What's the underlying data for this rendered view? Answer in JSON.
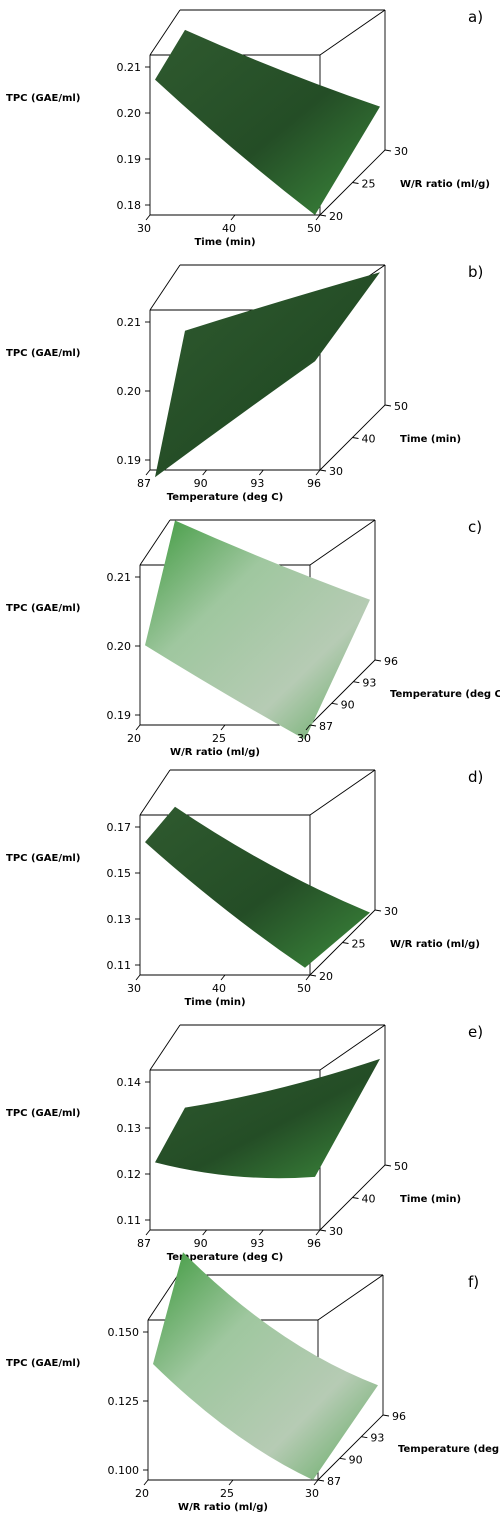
{
  "chart_data": [
    {
      "type": "surface3d",
      "panel": "a)",
      "zlabel": "TPC (GAE/ml)",
      "xlabel": "Time (min)",
      "ylabel": "W/R ratio (ml/g)",
      "x_ticks": [
        "30",
        "40",
        "50"
      ],
      "y_ticks": [
        "20",
        "25",
        "30"
      ],
      "z_ticks": [
        "0.21",
        "0.20",
        "0.19",
        "0.18"
      ],
      "x_range": [
        30,
        50
      ],
      "y_range": [
        20,
        30
      ],
      "z_range": [
        0.18,
        0.21
      ],
      "surface_z": [
        [
          0.208,
          0.194,
          0.18
        ],
        [
          0.209,
          0.197,
          0.185
        ],
        [
          0.209,
          0.2,
          0.19
        ]
      ],
      "shade": "dark"
    },
    {
      "type": "surface3d",
      "panel": "b)",
      "zlabel": "TPC (GAE/ml)",
      "xlabel": "Temperature (deg C)",
      "ylabel": "Time (min)",
      "x_ticks": [
        "87",
        "90",
        "93",
        "96"
      ],
      "y_ticks": [
        "30",
        "40",
        "50"
      ],
      "z_ticks": [
        "0.21",
        "0.20",
        "0.19"
      ],
      "x_range": [
        87,
        96
      ],
      "y_range": [
        30,
        50
      ],
      "z_range": [
        0.19,
        0.21
      ],
      "surface_z": [
        [
          0.189,
          0.198,
          0.205
        ],
        [
          0.196,
          0.202,
          0.207
        ],
        [
          0.203,
          0.207,
          0.209
        ]
      ],
      "shade": "dark"
    },
    {
      "type": "surface3d",
      "panel": "c)",
      "zlabel": "TPC (GAE/ml)",
      "xlabel": "W/R ratio (ml/g)",
      "ylabel": "Temperature (deg C)",
      "x_ticks": [
        "20",
        "25",
        "30"
      ],
      "y_ticks": [
        "87",
        "90",
        "93",
        "96"
      ],
      "z_ticks": [
        "0.21",
        "0.20",
        "0.19"
      ],
      "x_range": [
        20,
        30
      ],
      "y_range": [
        87,
        96
      ],
      "z_range": [
        0.19,
        0.21
      ],
      "surface_z": [
        [
          0.201,
          0.195,
          0.188
        ],
        [
          0.207,
          0.201,
          0.194
        ],
        [
          0.212,
          0.206,
          0.199
        ]
      ],
      "shade": "light"
    },
    {
      "type": "surface3d",
      "panel": "d)",
      "zlabel": "TPC (GAE/ml)",
      "xlabel": "Time (min)",
      "ylabel": "W/R ratio (ml/g)",
      "x_ticks": [
        "30",
        "40",
        "50"
      ],
      "y_ticks": [
        "20",
        "25",
        "30"
      ],
      "z_ticks": [
        "0.17",
        "0.15",
        "0.13",
        "0.11"
      ],
      "x_range": [
        30,
        50
      ],
      "y_range": [
        20,
        30
      ],
      "z_range": [
        0.11,
        0.17
      ],
      "surface_z": [
        [
          0.165,
          0.138,
          0.113
        ],
        [
          0.163,
          0.136,
          0.112
        ],
        [
          0.161,
          0.134,
          0.111
        ]
      ],
      "shade": "dark"
    },
    {
      "type": "surface3d",
      "panel": "e)",
      "zlabel": "TPC (GAE/ml)",
      "xlabel": "Temperature (deg C)",
      "ylabel": "Time (min)",
      "x_ticks": [
        "87",
        "90",
        "93",
        "96"
      ],
      "y_ticks": [
        "30",
        "40",
        "50"
      ],
      "z_ticks": [
        "0.14",
        "0.13",
        "0.12",
        "0.11"
      ],
      "x_range": [
        87,
        96
      ],
      "y_range": [
        30,
        50
      ],
      "z_range": [
        0.11,
        0.14
      ],
      "surface_z": [
        [
          0.124,
          0.121,
          0.121
        ],
        [
          0.125,
          0.123,
          0.126
        ],
        [
          0.126,
          0.129,
          0.133
        ]
      ],
      "shade": "dark"
    },
    {
      "type": "surface3d",
      "panel": "f)",
      "zlabel": "TPC (GAE/ml)",
      "xlabel": "W/R ratio (ml/g)",
      "ylabel": "Temperature (deg C)",
      "x_ticks": [
        "20",
        "25",
        "30"
      ],
      "y_ticks": [
        "87",
        "90",
        "93",
        "96"
      ],
      "z_ticks": [
        "0.150",
        "0.125",
        "0.100"
      ],
      "x_range": [
        20,
        30
      ],
      "y_range": [
        87,
        96
      ],
      "z_range": [
        0.1,
        0.15
      ],
      "surface_z": [
        [
          0.14,
          0.115,
          0.1
        ],
        [
          0.152,
          0.122,
          0.106
        ],
        [
          0.163,
          0.13,
          0.112
        ]
      ],
      "shade": "light"
    }
  ]
}
